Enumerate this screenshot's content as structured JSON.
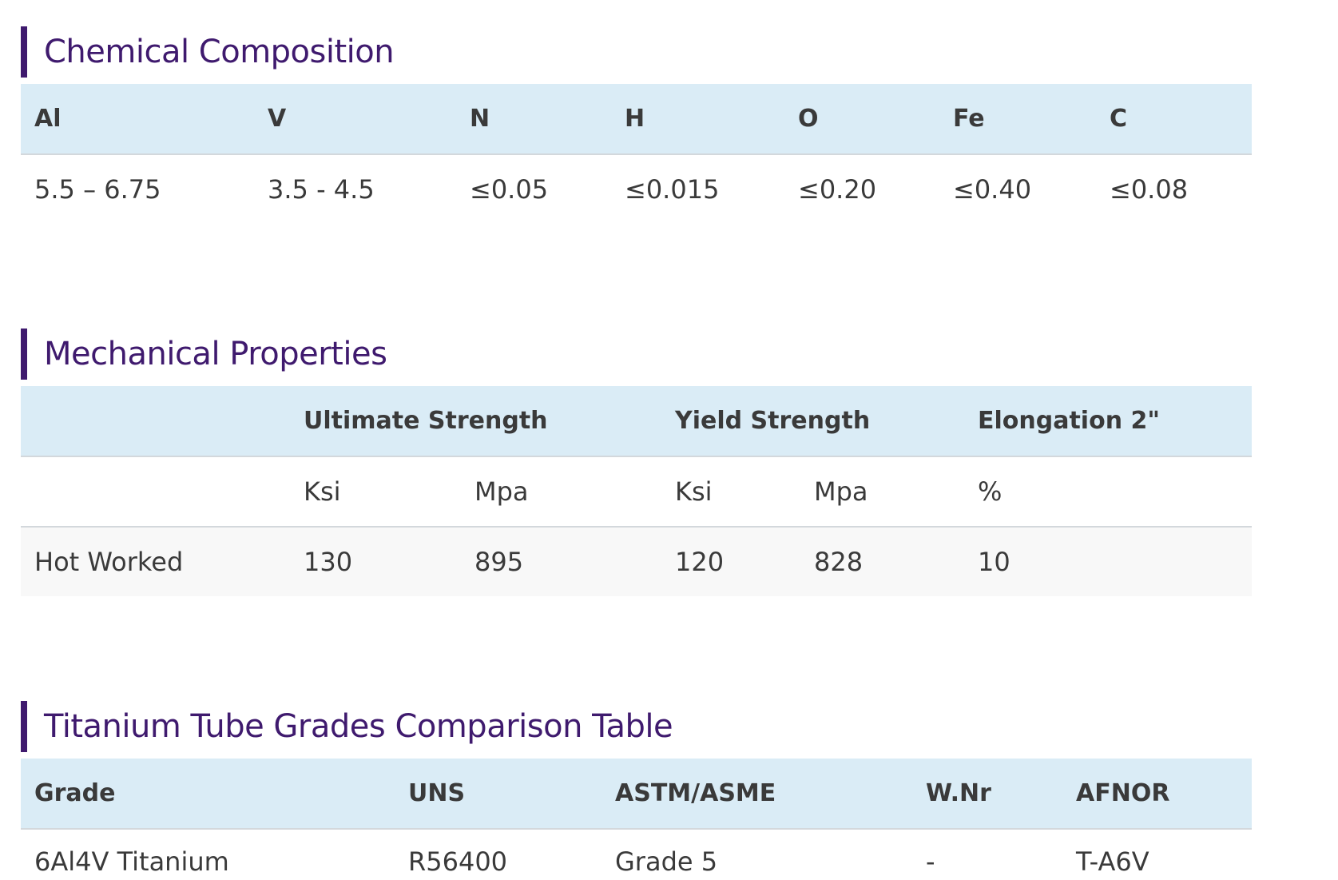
{
  "chemical": {
    "title": "Chemical Composition",
    "headers": [
      "Al",
      "V",
      "N",
      "H",
      "O",
      "Fe",
      "C"
    ],
    "values": [
      "5.5 – 6.75",
      "3.5 - 4.5",
      "≤0.05",
      "≤0.015",
      "≤0.20",
      "≤0.40",
      "≤0.08"
    ]
  },
  "mechanical": {
    "title": "Mechanical Properties",
    "headers": [
      "",
      "Ultimate Strength",
      "Yield Strength",
      "Elongation 2\""
    ],
    "units": [
      "",
      "Ksi",
      "Mpa",
      "Ksi",
      "Mpa",
      "%"
    ],
    "rows": [
      [
        "Hot Worked",
        "130",
        "895",
        "120",
        "828",
        "10"
      ]
    ]
  },
  "grades": {
    "title": "Titanium Tube Grades Comparison Table",
    "headers": [
      "Grade",
      "UNS",
      "ASTM/ASME",
      "W.Nr",
      "AFNOR"
    ],
    "rows": [
      [
        "6Al4V Titanium",
        "R56400",
        "Grade 5",
        "-",
        "T-A6V"
      ]
    ]
  }
}
